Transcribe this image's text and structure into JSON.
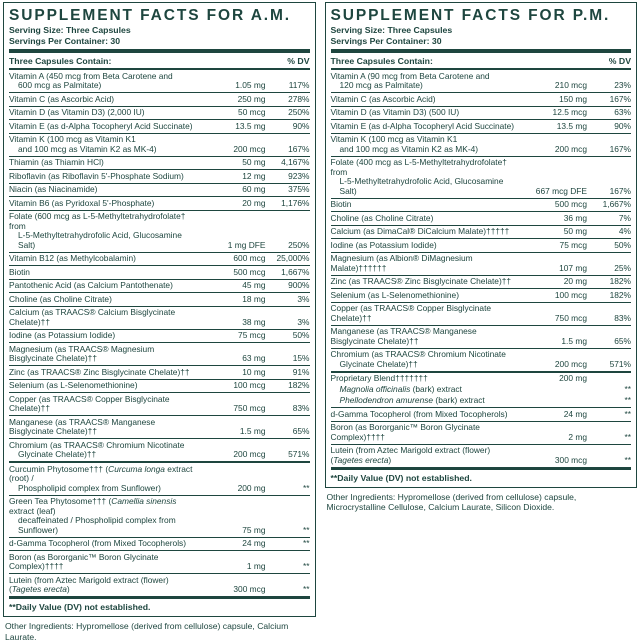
{
  "colors": {
    "label_ink": "#1e463f",
    "background": "#ffffff"
  },
  "panels": [
    {
      "title": "SUPPLEMENT FACTS FOR A.M.",
      "serving_size": "Serving Size: Three Capsules",
      "servings_per_container": "Servings Per Container: 30",
      "header_left": "Three Capsules Contain:",
      "header_right": "% DV",
      "rows": [
        {
          "lines": [
            {
              "segs": [
                {
                  "t": "Vitamin A (450 mcg from Beta Carotene and"
                }
              ]
            },
            {
              "indent": true,
              "segs": [
                {
                  "t": "600 mcg as Palmitate)"
                }
              ]
            }
          ],
          "amount": "1.05 mg",
          "dv": "117%"
        },
        {
          "lines": [
            {
              "segs": [
                {
                  "t": "Vitamin C (as Ascorbic Acid)"
                }
              ]
            }
          ],
          "amount": "250 mg",
          "dv": "278%"
        },
        {
          "lines": [
            {
              "segs": [
                {
                  "t": "Vitamin D (as Vitamin D3) (2,000 IU)"
                }
              ]
            }
          ],
          "amount": "50 mcg",
          "dv": "250%"
        },
        {
          "lines": [
            {
              "segs": [
                {
                  "t": "Vitamin E (as d-Alpha Tocopheryl Acid Succinate)"
                }
              ]
            }
          ],
          "amount": "13.5 mg",
          "dv": "90%"
        },
        {
          "lines": [
            {
              "segs": [
                {
                  "t": "Vitamin K (100 mcg as Vitamin K1"
                }
              ]
            },
            {
              "indent": true,
              "segs": [
                {
                  "t": "and 100 mcg as Vitamin K2 as MK-4)"
                }
              ]
            }
          ],
          "amount": "200 mcg",
          "dv": "167%"
        },
        {
          "lines": [
            {
              "segs": [
                {
                  "t": "Thiamin (as Thiamin HCl)"
                }
              ]
            }
          ],
          "amount": "50 mg",
          "dv": "4,167%"
        },
        {
          "lines": [
            {
              "segs": [
                {
                  "t": "Riboflavin (as Riboflavin 5'-Phosphate Sodium)"
                }
              ]
            }
          ],
          "amount": "12 mg",
          "dv": "923%"
        },
        {
          "lines": [
            {
              "segs": [
                {
                  "t": "Niacin (as Niacinamide)"
                }
              ]
            }
          ],
          "amount": "60 mg",
          "dv": "375%"
        },
        {
          "lines": [
            {
              "segs": [
                {
                  "t": "Vitamin B6 (as Pyridoxal 5'-Phosphate)"
                }
              ]
            }
          ],
          "amount": "20 mg",
          "dv": "1,176%"
        },
        {
          "lines": [
            {
              "segs": [
                {
                  "t": "Folate (600 mcg as L-5-Methyltetrahydrofolate† from"
                }
              ]
            },
            {
              "indent": true,
              "segs": [
                {
                  "t": "L-5-Methyltetrahydrofolic Acid, Glucosamine Salt)"
                }
              ]
            }
          ],
          "amount": "1 mg DFE",
          "dv": "250%"
        },
        {
          "lines": [
            {
              "segs": [
                {
                  "t": "Vitamin B12 (as Methylcobalamin)"
                }
              ]
            }
          ],
          "amount": "600 mcg",
          "dv": "25,000%"
        },
        {
          "lines": [
            {
              "segs": [
                {
                  "t": "Biotin"
                }
              ]
            }
          ],
          "amount": "500 mcg",
          "dv": "1,667%"
        },
        {
          "lines": [
            {
              "segs": [
                {
                  "t": "Pantothenic Acid (as Calcium Pantothenate)"
                }
              ]
            }
          ],
          "amount": "45 mg",
          "dv": "900%"
        },
        {
          "lines": [
            {
              "segs": [
                {
                  "t": "Choline (as Choline Citrate)"
                }
              ]
            }
          ],
          "amount": "18 mg",
          "dv": "3%"
        },
        {
          "lines": [
            {
              "segs": [
                {
                  "t": "Calcium (as TRAACS® Calcium Bisglycinate Chelate)††"
                }
              ]
            }
          ],
          "amount": "38 mg",
          "dv": "3%"
        },
        {
          "lines": [
            {
              "segs": [
                {
                  "t": "Iodine (as Potassium Iodide)"
                }
              ]
            }
          ],
          "amount": "75 mcg",
          "dv": "50%"
        },
        {
          "lines": [
            {
              "segs": [
                {
                  "t": "Magnesium (as TRAACS® Magnesium Bisglycinate Chelate)††"
                }
              ]
            }
          ],
          "amount": "63 mg",
          "dv": "15%"
        },
        {
          "lines": [
            {
              "segs": [
                {
                  "t": "Zinc (as TRAACS® Zinc Bisglycinate Chelate)††"
                }
              ]
            }
          ],
          "amount": "10 mg",
          "dv": "91%"
        },
        {
          "lines": [
            {
              "segs": [
                {
                  "t": "Selenium (as L-Selenomethionine)"
                }
              ]
            }
          ],
          "amount": "100 mcg",
          "dv": "182%"
        },
        {
          "lines": [
            {
              "segs": [
                {
                  "t": "Copper (as TRAACS® Copper Bisglycinate Chelate)††"
                }
              ]
            }
          ],
          "amount": "750 mcg",
          "dv": "83%"
        },
        {
          "lines": [
            {
              "segs": [
                {
                  "t": "Manganese (as TRAACS® Manganese Bisglycinate Chelate)††"
                }
              ]
            }
          ],
          "amount": "1.5 mg",
          "dv": "65%"
        },
        {
          "lines": [
            {
              "segs": [
                {
                  "t": "Chromium (as TRAACS® Chromium Nicotinate"
                }
              ]
            },
            {
              "indent": true,
              "segs": [
                {
                  "t": "Glycinate Chelate)††"
                }
              ]
            }
          ],
          "amount": "200 mcg",
          "dv": "571%"
        },
        {
          "sep": "thick",
          "lines": [
            {
              "segs": [
                {
                  "t": "Curcumin Phytosome††† ("
                },
                {
                  "t": "Curcuma longa",
                  "i": true
                },
                {
                  "t": " extract (root) /"
                }
              ]
            },
            {
              "indent": true,
              "segs": [
                {
                  "t": "Phospholipid complex from Sunflower)"
                }
              ]
            }
          ],
          "amount": "200 mg",
          "dv": "**"
        },
        {
          "lines": [
            {
              "segs": [
                {
                  "t": "Green Tea Phytosome††† ("
                },
                {
                  "t": "Camellia sinensis",
                  "i": true
                },
                {
                  "t": " extract (leaf)"
                }
              ]
            },
            {
              "indent": true,
              "segs": [
                {
                  "t": "decaffeinated / Phospholipid complex from Sunflower)"
                }
              ]
            }
          ],
          "amount": "75 mg",
          "dv": "**"
        },
        {
          "lines": [
            {
              "segs": [
                {
                  "t": "d-Gamma Tocopherol (from Mixed Tocopherols)"
                }
              ]
            }
          ],
          "amount": "24 mg",
          "dv": "**"
        },
        {
          "lines": [
            {
              "segs": [
                {
                  "t": "Boron (as Bororganic™ Boron Glycinate Complex)††††"
                }
              ]
            }
          ],
          "amount": "1 mg",
          "dv": "**"
        },
        {
          "lines": [
            {
              "segs": [
                {
                  "t": "Lutein (from Aztec Marigold extract (flower) ("
                },
                {
                  "t": "Tagetes erecta",
                  "i": true
                },
                {
                  "t": ")"
                }
              ]
            }
          ],
          "amount": "300 mcg",
          "dv": "**"
        }
      ],
      "footnote": "**Daily Value (DV) not established.",
      "other_ingredients": "Other Ingredients: Hypromellose (derived from cellulose) capsule, Calcium Laurate."
    },
    {
      "title": "SUPPLEMENT FACTS FOR P.M.",
      "serving_size": "Serving Size: Three Capsules",
      "servings_per_container": "Servings Per Container: 30",
      "header_left": "Three Capsules Contain:",
      "header_right": "% DV",
      "rows": [
        {
          "lines": [
            {
              "segs": [
                {
                  "t": "Vitamin A (90 mcg from Beta Carotene and"
                }
              ]
            },
            {
              "indent": true,
              "segs": [
                {
                  "t": "120 mcg as Palmitate)"
                }
              ]
            }
          ],
          "amount": "210 mcg",
          "dv": "23%"
        },
        {
          "lines": [
            {
              "segs": [
                {
                  "t": "Vitamin C (as Ascorbic Acid)"
                }
              ]
            }
          ],
          "amount": "150 mg",
          "dv": "167%"
        },
        {
          "lines": [
            {
              "segs": [
                {
                  "t": "Vitamin D (as Vitamin D3) (500 IU)"
                }
              ]
            }
          ],
          "amount": "12.5 mcg",
          "dv": "63%"
        },
        {
          "lines": [
            {
              "segs": [
                {
                  "t": "Vitamin E (as d-Alpha Tocopheryl Acid Succinate)"
                }
              ]
            }
          ],
          "amount": "13.5 mg",
          "dv": "90%"
        },
        {
          "lines": [
            {
              "segs": [
                {
                  "t": "Vitamin K (100 mcg as Vitamin K1"
                }
              ]
            },
            {
              "indent": true,
              "segs": [
                {
                  "t": "and 100 mcg as Vitamin K2 as MK-4)"
                }
              ]
            }
          ],
          "amount": "200 mcg",
          "dv": "167%"
        },
        {
          "lines": [
            {
              "segs": [
                {
                  "t": "Folate (400 mcg as L-5-Methyltetrahydrofolate† from"
                }
              ]
            },
            {
              "indent": true,
              "segs": [
                {
                  "t": "L-5-Methyltetrahydrofolic Acid, Glucosamine Salt)"
                }
              ]
            }
          ],
          "amount": "667 mcg DFE",
          "dv": "167%"
        },
        {
          "lines": [
            {
              "segs": [
                {
                  "t": "Biotin"
                }
              ]
            }
          ],
          "amount": "500 mcg",
          "dv": "1,667%"
        },
        {
          "lines": [
            {
              "segs": [
                {
                  "t": "Choline (as Choline Citrate)"
                }
              ]
            }
          ],
          "amount": "36 mg",
          "dv": "7%"
        },
        {
          "lines": [
            {
              "segs": [
                {
                  "t": "Calcium (as DimaCal® DiCalcium Malate)†††††"
                }
              ]
            }
          ],
          "amount": "50 mg",
          "dv": "4%"
        },
        {
          "lines": [
            {
              "segs": [
                {
                  "t": "Iodine (as Potassium Iodide)"
                }
              ]
            }
          ],
          "amount": "75 mcg",
          "dv": "50%"
        },
        {
          "lines": [
            {
              "segs": [
                {
                  "t": "Magnesium (as Albion® DiMagnesium Malate)††††††"
                }
              ]
            }
          ],
          "amount": "107 mg",
          "dv": "25%"
        },
        {
          "lines": [
            {
              "segs": [
                {
                  "t": "Zinc (as TRAACS® Zinc Bisglycinate Chelate)††"
                }
              ]
            }
          ],
          "amount": "20 mg",
          "dv": "182%"
        },
        {
          "lines": [
            {
              "segs": [
                {
                  "t": "Selenium (as L-Selenomethionine)"
                }
              ]
            }
          ],
          "amount": "100 mcg",
          "dv": "182%"
        },
        {
          "lines": [
            {
              "segs": [
                {
                  "t": "Copper (as TRAACS® Copper Bisglycinate Chelate)††"
                }
              ]
            }
          ],
          "amount": "750 mcg",
          "dv": "83%"
        },
        {
          "lines": [
            {
              "segs": [
                {
                  "t": "Manganese (as TRAACS® Manganese Bisglycinate Chelate)††"
                }
              ]
            }
          ],
          "amount": "1.5 mg",
          "dv": "65%"
        },
        {
          "lines": [
            {
              "segs": [
                {
                  "t": "Chromium (as TRAACS® Chromium Nicotinate"
                }
              ]
            },
            {
              "indent": true,
              "segs": [
                {
                  "t": "Glycinate Chelate)††"
                }
              ]
            }
          ],
          "amount": "200 mcg",
          "dv": "571%"
        },
        {
          "sep": "thick",
          "lines": [
            {
              "segs": [
                {
                  "t": "Proprietary Blend†††††††"
                }
              ]
            }
          ],
          "amount": "200 mg",
          "dv": ""
        },
        {
          "nosep": true,
          "lines": [
            {
              "indent": true,
              "segs": [
                {
                  "t": "Magnolia officinalis",
                  "i": true
                },
                {
                  "t": " (bark) extract"
                }
              ]
            }
          ],
          "amount": "",
          "dv": "**"
        },
        {
          "nosep": true,
          "lines": [
            {
              "indent": true,
              "segs": [
                {
                  "t": "Phellodendron amurense",
                  "i": true
                },
                {
                  "t": " (bark) extract"
                }
              ]
            }
          ],
          "amount": "",
          "dv": "**"
        },
        {
          "lines": [
            {
              "segs": [
                {
                  "t": "d-Gamma Tocopherol (from Mixed Tocopherols)"
                }
              ]
            }
          ],
          "amount": "24 mg",
          "dv": "**"
        },
        {
          "lines": [
            {
              "segs": [
                {
                  "t": "Boron (as Bororganic™ Boron Glycinate Complex)††††"
                }
              ]
            }
          ],
          "amount": "2 mg",
          "dv": "**"
        },
        {
          "lines": [
            {
              "segs": [
                {
                  "t": "Lutein (from Aztec Marigold extract (flower) ("
                },
                {
                  "t": "Tagetes erecta",
                  "i": true
                },
                {
                  "t": ")"
                }
              ]
            }
          ],
          "amount": "300 mcg",
          "dv": "**"
        }
      ],
      "footnote": "**Daily Value (DV) not established.",
      "other_ingredients": "Other Ingredients: Hypromellose (derived from cellulose) capsule, Microcrystalline Cellulose, Calcium Laurate, Silicon Dioxide."
    }
  ]
}
